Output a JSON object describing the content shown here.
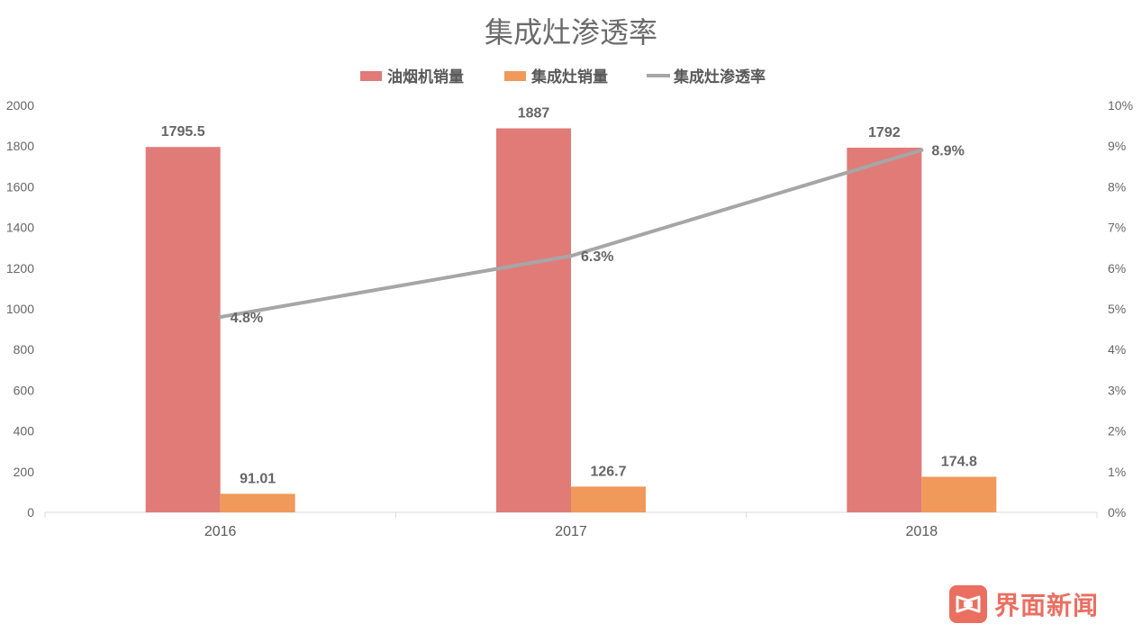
{
  "chart_data": {
    "type": "bar",
    "title": "集成灶渗透率",
    "categories": [
      "2016",
      "2017",
      "2018"
    ],
    "series": [
      {
        "name": "油烟机销量",
        "kind": "bar",
        "axis": "left",
        "color": "#e07b78",
        "values": [
          1795.5,
          1887,
          1792
        ],
        "labels": [
          "1795.5",
          "1887",
          "1792"
        ]
      },
      {
        "name": "集成灶销量",
        "kind": "bar",
        "axis": "left",
        "color": "#f0995a",
        "values": [
          91.01,
          126.7,
          174.8
        ],
        "labels": [
          "91.01",
          "126.7",
          "174.8"
        ]
      },
      {
        "name": "集成灶渗透率",
        "kind": "line",
        "axis": "right",
        "color": "#a6a6a6",
        "values": [
          4.8,
          6.3,
          8.9
        ],
        "labels": [
          "4.8%",
          "6.3%",
          "8.9%"
        ]
      }
    ],
    "ylim": [
      0,
      2000
    ],
    "y_ticks": [
      "0",
      "200",
      "400",
      "600",
      "800",
      "1000",
      "1200",
      "1400",
      "1600",
      "1800",
      "2000"
    ],
    "y2lim": [
      0,
      10
    ],
    "y2_ticks": [
      "0%",
      "1%",
      "2%",
      "3%",
      "4%",
      "5%",
      "6%",
      "7%",
      "8%",
      "9%",
      "10%"
    ],
    "legend": "top",
    "grid": false
  },
  "logo": {
    "text": "界面新闻"
  }
}
